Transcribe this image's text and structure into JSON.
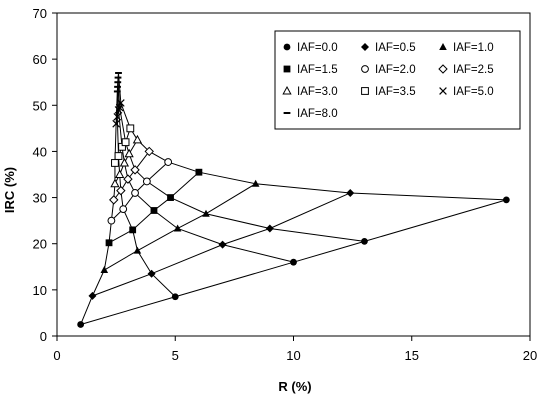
{
  "chart_data": {
    "type": "scatter",
    "title": "",
    "xlabel": "R (%)",
    "ylabel": "IRC (%)",
    "xlim": [
      0,
      20
    ],
    "ylim": [
      0,
      70
    ],
    "xticks": [
      0,
      5,
      10,
      15,
      20
    ],
    "yticks": [
      0,
      10,
      20,
      30,
      40,
      50,
      60,
      70
    ],
    "x_tick_labels": [
      "0",
      "5",
      "10",
      "15",
      "20"
    ],
    "y_tick_labels": [
      "0",
      "10",
      "20",
      "30",
      "40",
      "50",
      "60",
      "70"
    ],
    "grid": false,
    "legend_position": "top-right",
    "series_color": "#000000",
    "series": [
      {
        "name": "IAF=0.0",
        "marker": "circle-filled",
        "x": [
          1.0,
          5.0,
          10.0,
          13.0,
          19.0
        ],
        "y": [
          2.5,
          8.5,
          16.0,
          20.5,
          29.5
        ]
      },
      {
        "name": "IAF=0.5",
        "marker": "diamond-filled",
        "x": [
          1.5,
          4.0,
          7.0,
          9.0,
          12.4
        ],
        "y": [
          8.7,
          13.5,
          19.8,
          23.3,
          31.0
        ]
      },
      {
        "name": "IAF=1.0",
        "marker": "triangle-filled",
        "x": [
          2.0,
          3.4,
          5.1,
          6.3,
          8.4
        ],
        "y": [
          14.3,
          18.5,
          23.3,
          26.5,
          33.0
        ]
      },
      {
        "name": "IAF=1.5",
        "marker": "square-filled",
        "x": [
          2.2,
          3.2,
          4.1,
          4.8,
          6.0
        ],
        "y": [
          20.2,
          23.0,
          27.2,
          30.0,
          35.5
        ]
      },
      {
        "name": "IAF=2.0",
        "marker": "circle-open",
        "x": [
          2.3,
          2.8,
          3.3,
          3.8,
          4.7
        ],
        "y": [
          25.0,
          27.5,
          31.0,
          33.5,
          37.7
        ]
      },
      {
        "name": "IAF=2.5",
        "marker": "diamond-open",
        "x": [
          2.4,
          2.7,
          3.0,
          3.3,
          3.9
        ],
        "y": [
          29.5,
          31.5,
          34.0,
          36.0,
          40.0
        ]
      },
      {
        "name": "IAF=3.0",
        "marker": "triangle-open",
        "x": [
          2.45,
          2.65,
          2.85,
          3.05,
          3.4
        ],
        "y": [
          33.0,
          35.0,
          37.5,
          39.5,
          42.5
        ]
      },
      {
        "name": "IAF=3.5",
        "marker": "square-open",
        "x": [
          2.45,
          2.6,
          2.75,
          2.9,
          3.1
        ],
        "y": [
          37.5,
          39.0,
          41.0,
          42.0,
          45.0
        ]
      },
      {
        "name": "IAF=5.0",
        "marker": "cross",
        "x": [
          2.5,
          2.55,
          2.6,
          2.65,
          2.7
        ],
        "y": [
          46.0,
          47.5,
          49.0,
          49.5,
          50.5
        ]
      },
      {
        "name": "IAF=8.0",
        "marker": "dash",
        "x": [
          2.55,
          2.56,
          2.57,
          2.58,
          2.6
        ],
        "y": [
          53.0,
          54.0,
          55.0,
          56.0,
          57.0
        ]
      }
    ],
    "isolines": [
      {
        "x": [
          1.0,
          1.5,
          2.0,
          2.2,
          2.3,
          2.4,
          2.45,
          2.45,
          2.5,
          2.55
        ],
        "y": [
          2.5,
          8.7,
          14.3,
          20.2,
          25.0,
          29.5,
          33.0,
          37.5,
          46.0,
          53.0
        ]
      },
      {
        "x": [
          5.0,
          4.0,
          3.4,
          3.2,
          2.8,
          2.7,
          2.65,
          2.6,
          2.55,
          2.56
        ],
        "y": [
          8.5,
          13.5,
          18.5,
          23.0,
          27.5,
          31.5,
          35.0,
          39.0,
          47.5,
          54.0
        ]
      },
      {
        "x": [
          10.0,
          7.0,
          5.1,
          4.1,
          3.3,
          3.0,
          2.85,
          2.75,
          2.6,
          2.57
        ],
        "y": [
          16.0,
          19.8,
          23.3,
          27.2,
          31.0,
          34.0,
          37.5,
          41.0,
          49.0,
          55.0
        ]
      },
      {
        "x": [
          13.0,
          9.0,
          6.3,
          4.8,
          3.8,
          3.3,
          3.05,
          2.9,
          2.65,
          2.58
        ],
        "y": [
          20.5,
          23.3,
          26.5,
          30.0,
          33.5,
          36.0,
          39.5,
          42.0,
          49.5,
          56.0
        ]
      },
      {
        "x": [
          19.0,
          12.4,
          8.4,
          6.0,
          4.7,
          3.9,
          3.4,
          3.1,
          2.7,
          2.6
        ],
        "y": [
          29.5,
          31.0,
          33.0,
          35.5,
          37.7,
          40.0,
          42.5,
          45.0,
          50.5,
          57.0
        ]
      }
    ]
  }
}
